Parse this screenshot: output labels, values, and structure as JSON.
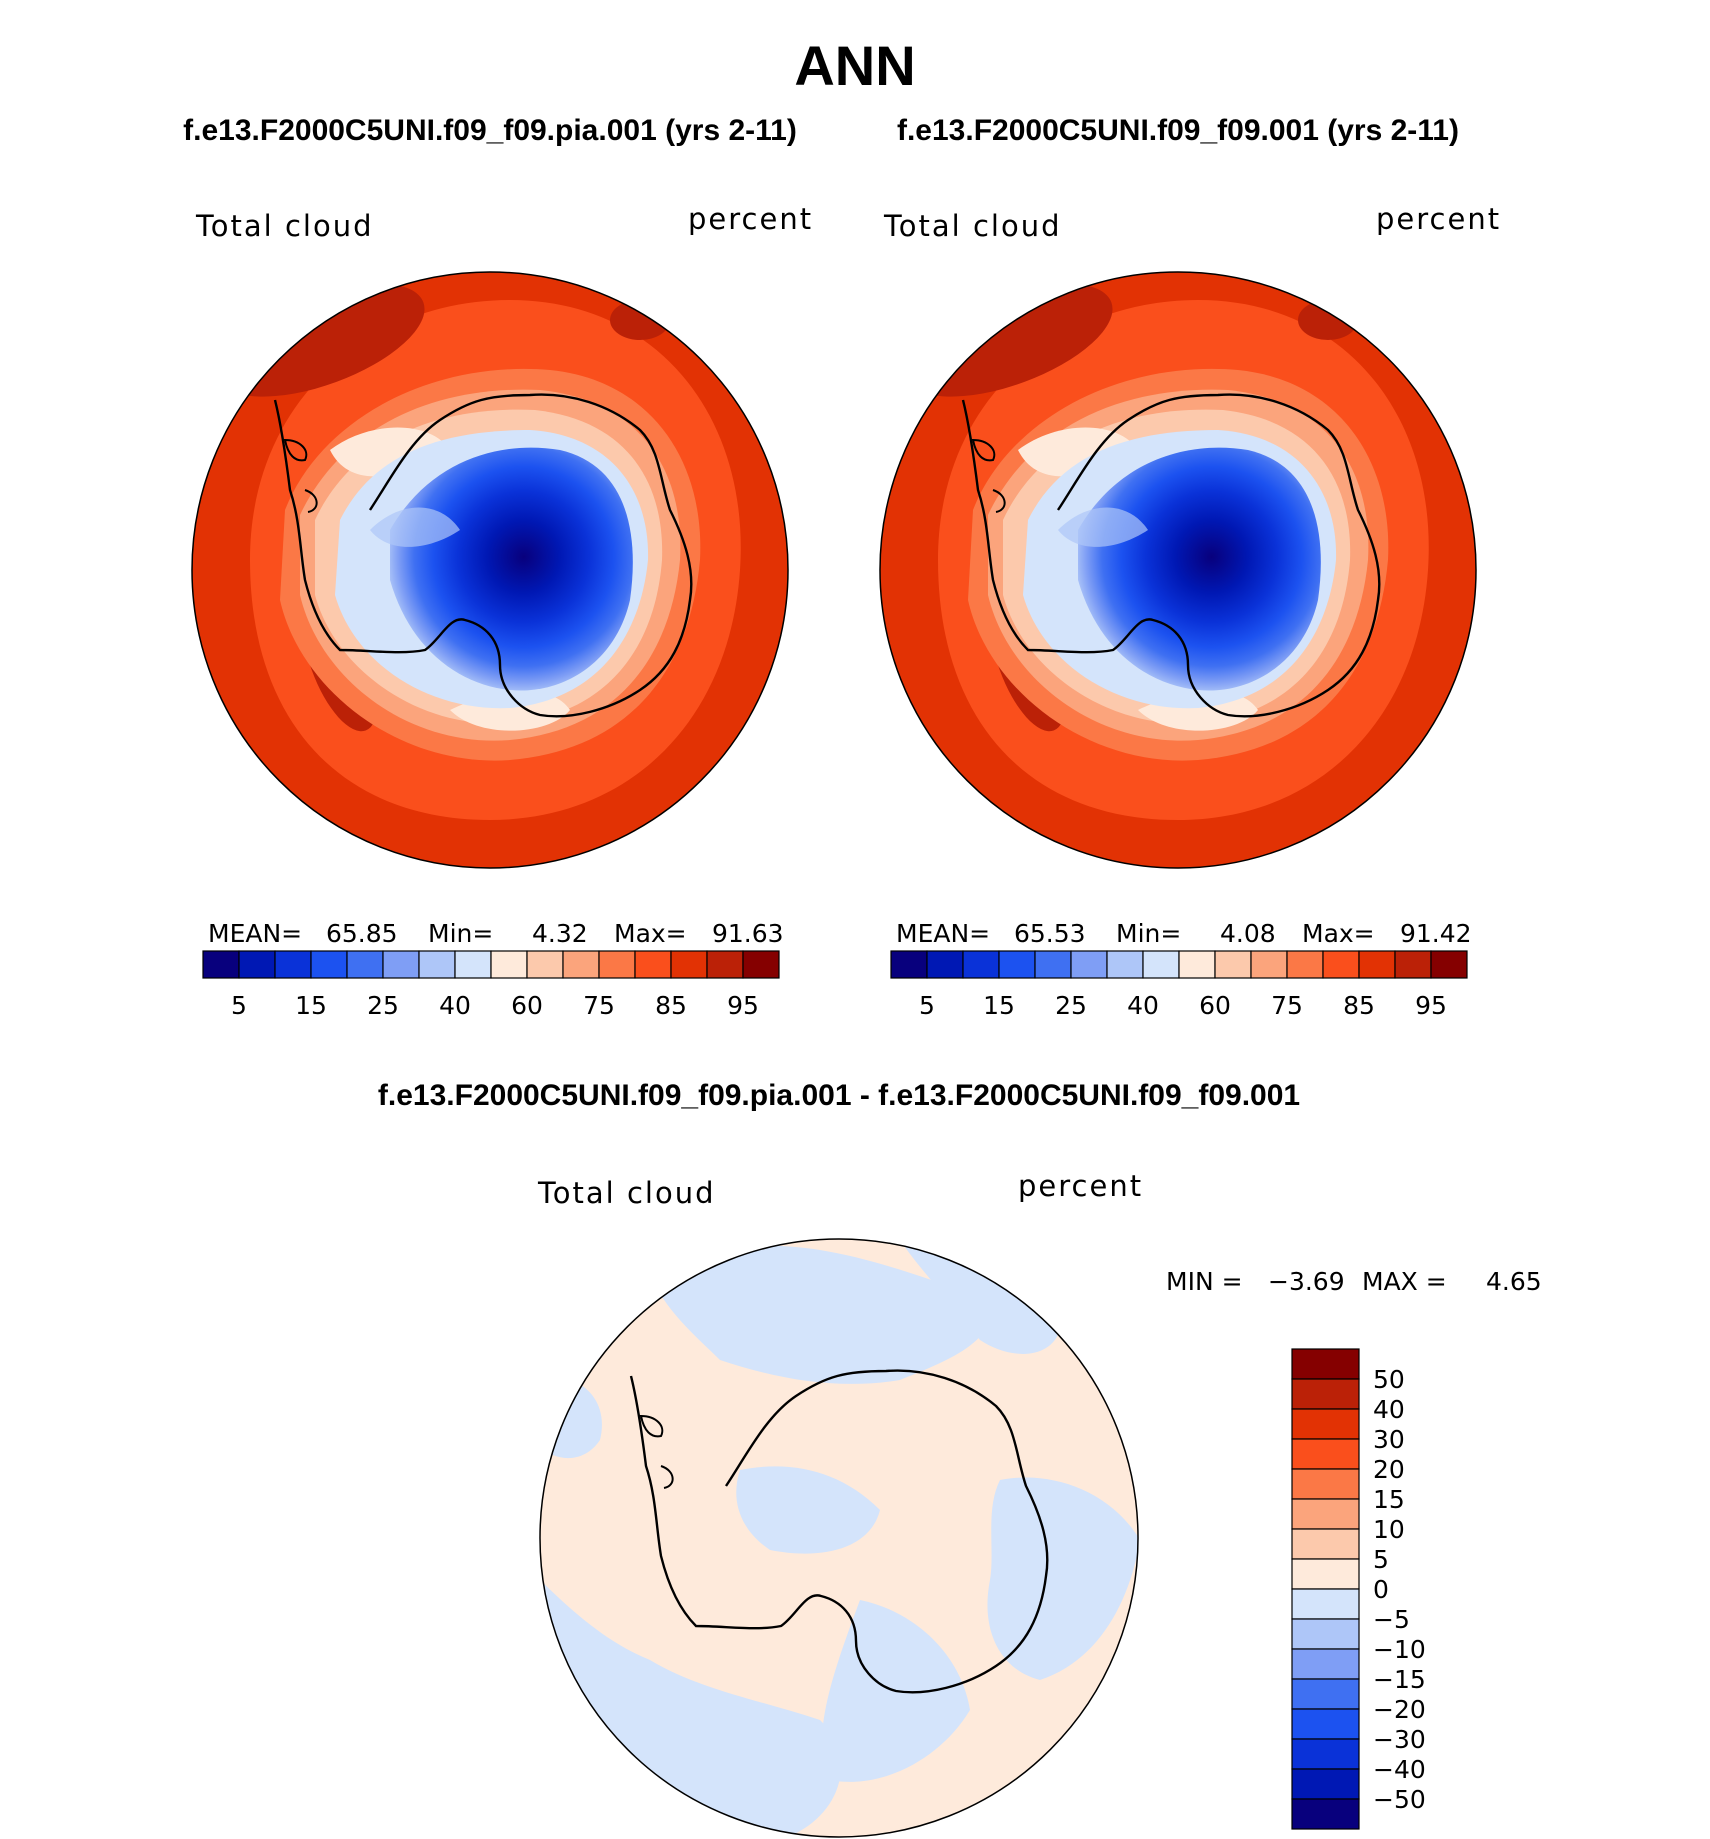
{
  "chart_data": [
    {
      "type": "heatmap",
      "projection": "south-polar-stereographic",
      "title": "f.e13.F2000C5UNI.f09_f09.pia.001 (yrs 2-11)",
      "variable": "Total cloud",
      "units": "percent",
      "stats": {
        "mean_label": "MEAN=",
        "mean": "65.85",
        "min_label": "Min=",
        "min": "4.32",
        "max_label": "Max=",
        "max": "91.63"
      },
      "contour_levels": [
        5,
        10,
        15,
        20,
        25,
        30,
        40,
        50,
        60,
        70,
        75,
        80,
        85,
        90,
        95
      ],
      "colorbar_ticks": [
        "5",
        "15",
        "25",
        "40",
        "60",
        "75",
        "85",
        "95"
      ]
    },
    {
      "type": "heatmap",
      "projection": "south-polar-stereographic",
      "title": "f.e13.F2000C5UNI.f09_f09.001 (yrs 2-11)",
      "variable": "Total cloud",
      "units": "percent",
      "stats": {
        "mean_label": "MEAN=",
        "mean": "65.53",
        "min_label": "Min=",
        "min": "4.08",
        "max_label": "Max=",
        "max": "91.42"
      },
      "contour_levels": [
        5,
        10,
        15,
        20,
        25,
        30,
        40,
        50,
        60,
        70,
        75,
        80,
        85,
        90,
        95
      ],
      "colorbar_ticks": [
        "5",
        "15",
        "25",
        "40",
        "60",
        "75",
        "85",
        "95"
      ]
    },
    {
      "type": "heatmap",
      "projection": "south-polar-stereographic",
      "title": "f.e13.F2000C5UNI.f09_f09.pia.001 - f.e13.F2000C5UNI.f09_f09.001",
      "variable": "Total cloud",
      "units": "percent",
      "stats": {
        "min_label": "MIN =",
        "min": "−3.69",
        "max_label": "MAX =",
        "max": "4.65"
      },
      "contour_levels": [
        -50,
        -40,
        -30,
        -20,
        -15,
        -10,
        -5,
        0,
        5,
        10,
        15,
        20,
        30,
        40,
        50
      ],
      "colorbar_ticks": [
        "50",
        "40",
        "30",
        "20",
        "15",
        "10",
        "5",
        "0",
        "−5",
        "−10",
        "−15",
        "−20",
        "−30",
        "−40",
        "−50"
      ]
    }
  ],
  "figure_title": "ANN",
  "colors": {
    "abs_palette": [
      "#08007d",
      "#0018b4",
      "#0a32d8",
      "#1c52f0",
      "#3f70f2",
      "#7f9ef5",
      "#aec6f8",
      "#d4e4fb",
      "#feeadb",
      "#fcc9ac",
      "#fba47c",
      "#fb7846",
      "#fa4f1c",
      "#e23204",
      "#bb2107",
      "#850000"
    ],
    "diff_palette": [
      "#850000",
      "#bb2107",
      "#e23204",
      "#fa4f1c",
      "#fb7846",
      "#fba47c",
      "#fcc9ac",
      "#feeadb",
      "#d4e4fb",
      "#aec6f8",
      "#7f9ef5",
      "#3f70f2",
      "#1c52f0",
      "#0a32d8",
      "#0018b4",
      "#08007d"
    ],
    "ocean_far": "#e23204",
    "ocean_mid": "#fa4f1c",
    "coast_ring": "#fcc9ac",
    "diff_pos": "#feeadb",
    "diff_neg": "#d4e4fb",
    "coastline": "#000000"
  }
}
